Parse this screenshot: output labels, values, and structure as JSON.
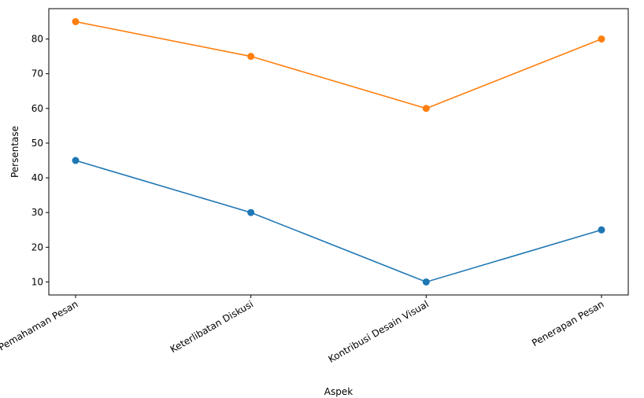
{
  "chart_data": {
    "type": "line",
    "title": "",
    "xlabel": "Aspek",
    "ylabel": "Persentase",
    "categories": [
      "Pemahaman Pesan",
      "Keterlibatan Diskusi",
      "Kontribusi Desain Visual",
      "Penerapan Pesan"
    ],
    "yticks": [
      "10",
      "20",
      "30",
      "40",
      "50",
      "60",
      "70",
      "80"
    ],
    "ylim": [
      6.25,
      88.75
    ],
    "grid": false,
    "legend": "none",
    "series": [
      {
        "values": [
          45,
          30,
          10,
          25
        ],
        "color": "#1f77b4"
      },
      {
        "values": [
          85,
          75,
          60,
          80
        ],
        "color": "#ff7f0e"
      }
    ]
  }
}
